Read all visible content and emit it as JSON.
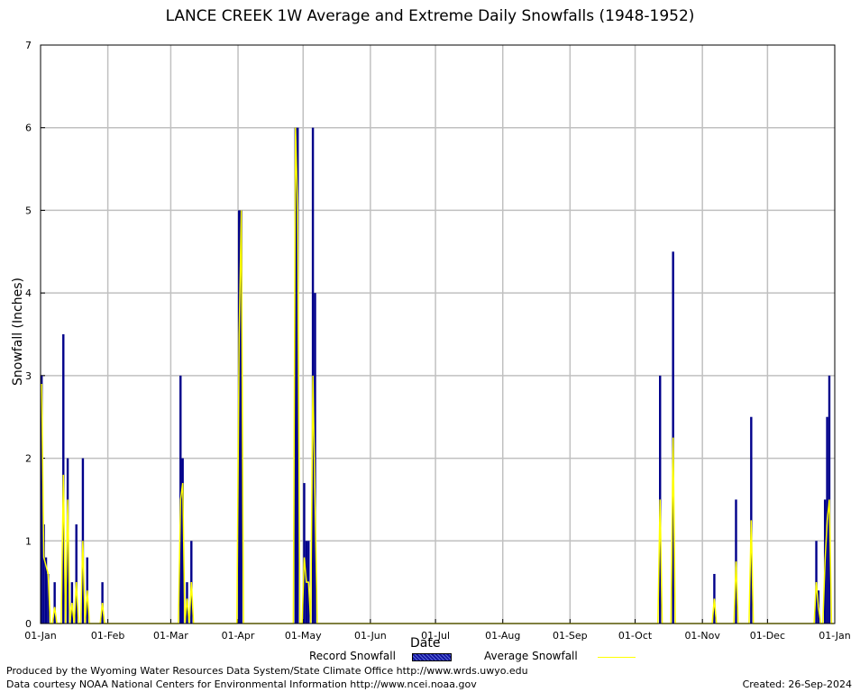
{
  "chart_data": {
    "type": "bar",
    "title": "LANCE CREEK 1W Average and Extreme Daily Snowfalls (1948-1952)",
    "xlabel": "Date",
    "ylabel": "Snowfall (Inches)",
    "x_tick_labels": [
      "01-Jan",
      "01-Feb",
      "01-Mar",
      "01-Apr",
      "01-May",
      "01-Jun",
      "01-Jul",
      "01-Aug",
      "01-Sep",
      "01-Oct",
      "01-Nov",
      "01-Dec",
      "01-Jan"
    ],
    "y_ticks": [
      0,
      1,
      2,
      3,
      4,
      5,
      6,
      7
    ],
    "ylim": [
      0,
      7
    ],
    "grid": true,
    "legend": [
      "Record Snowfall",
      "Average Snowfall"
    ],
    "legend_position": "bottom",
    "colors": {
      "record": "#00008b",
      "average": "#ffff00",
      "grid": "#c0c0c0"
    },
    "series": [
      {
        "name": "Record Snowfall",
        "points": [
          [
            "01-Jan",
            3.0
          ],
          [
            "02-Jan",
            1.2
          ],
          [
            "03-Jan",
            0.8
          ],
          [
            "04-Jan",
            0.6
          ],
          [
            "07-Jan",
            0.5
          ],
          [
            "11-Jan",
            3.5
          ],
          [
            "13-Jan",
            2.0
          ],
          [
            "15-Jan",
            0.5
          ],
          [
            "17-Jan",
            1.2
          ],
          [
            "20-Jan",
            2.0
          ],
          [
            "22-Jan",
            0.8
          ],
          [
            "29-Jan",
            0.5
          ],
          [
            "05-Mar",
            3.0
          ],
          [
            "06-Mar",
            2.0
          ],
          [
            "08-Mar",
            0.5
          ],
          [
            "10-Mar",
            1.0
          ],
          [
            "01-Apr",
            5.0
          ],
          [
            "02-Apr",
            5.0
          ],
          [
            "27-Apr",
            6.0
          ],
          [
            "28-Apr",
            6.0
          ],
          [
            "01-May",
            1.7
          ],
          [
            "02-May",
            1.0
          ],
          [
            "03-May",
            1.0
          ],
          [
            "05-May",
            6.0
          ],
          [
            "06-May",
            4.0
          ],
          [
            "12-Oct",
            3.0
          ],
          [
            "18-Oct",
            4.5
          ],
          [
            "06-Nov",
            0.6
          ],
          [
            "16-Nov",
            1.5
          ],
          [
            "23-Nov",
            2.5
          ],
          [
            "23-Dec",
            1.0
          ],
          [
            "24-Dec",
            0.4
          ],
          [
            "27-Dec",
            1.5
          ],
          [
            "28-Dec",
            2.5
          ],
          [
            "29-Dec",
            3.0
          ]
        ]
      },
      {
        "name": "Average Snowfall",
        "points": [
          [
            "01-Jan",
            2.9
          ],
          [
            "02-Jan",
            0.8
          ],
          [
            "03-Jan",
            0.7
          ],
          [
            "04-Jan",
            0.6
          ],
          [
            "07-Jan",
            0.2
          ],
          [
            "11-Jan",
            1.8
          ],
          [
            "13-Jan",
            1.5
          ],
          [
            "15-Jan",
            0.25
          ],
          [
            "17-Jan",
            0.5
          ],
          [
            "20-Jan",
            1.0
          ],
          [
            "22-Jan",
            0.4
          ],
          [
            "29-Jan",
            0.25
          ],
          [
            "05-Mar",
            1.5
          ],
          [
            "06-Mar",
            1.7
          ],
          [
            "08-Mar",
            0.3
          ],
          [
            "10-Mar",
            0.5
          ],
          [
            "01-Apr",
            3.5
          ],
          [
            "02-Apr",
            5.0
          ],
          [
            "27-Apr",
            6.0
          ],
          [
            "28-Apr",
            5.0
          ],
          [
            "01-May",
            0.8
          ],
          [
            "02-May",
            0.5
          ],
          [
            "03-May",
            0.5
          ],
          [
            "05-May",
            3.0
          ],
          [
            "06-May",
            1.5
          ],
          [
            "12-Oct",
            1.5
          ],
          [
            "18-Oct",
            2.25
          ],
          [
            "06-Nov",
            0.3
          ],
          [
            "16-Nov",
            0.75
          ],
          [
            "23-Nov",
            1.25
          ],
          [
            "23-Dec",
            0.5
          ],
          [
            "24-Dec",
            0.2
          ],
          [
            "27-Dec",
            0.75
          ],
          [
            "28-Dec",
            1.25
          ],
          [
            "29-Dec",
            1.5
          ]
        ]
      }
    ]
  },
  "footer": {
    "credit1": "Produced by the Wyoming Water Resources Data System/State Climate Office http://www.wrds.uwyo.edu",
    "credit2": "Data courtesy NOAA National Centers for Environmental Information http://www.ncei.noaa.gov",
    "created": "Created:  26-Sep-2024"
  }
}
